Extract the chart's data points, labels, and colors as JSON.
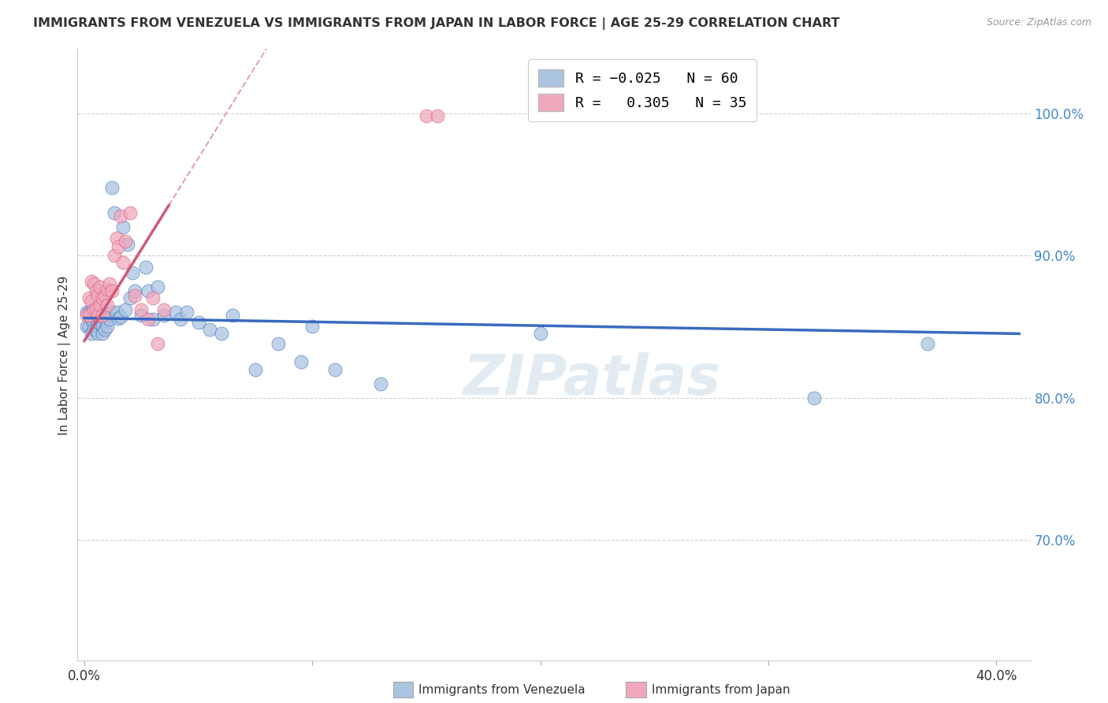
{
  "title": "IMMIGRANTS FROM VENEZUELA VS IMMIGRANTS FROM JAPAN IN LABOR FORCE | AGE 25-29 CORRELATION CHART",
  "source": "Source: ZipAtlas.com",
  "ylabel": "In Labor Force | Age 25-29",
  "xlim": [
    -0.003,
    0.415
  ],
  "ylim": [
    0.615,
    1.045
  ],
  "y_ticks": [
    0.7,
    0.8,
    0.9,
    1.0
  ],
  "y_tick_labels": [
    "70.0%",
    "80.0%",
    "90.0%",
    "100.0%"
  ],
  "x_ticks": [
    0.0,
    0.1,
    0.2,
    0.3,
    0.4
  ],
  "x_tick_labels_show": [
    "0.0%",
    "40.0%"
  ],
  "legend_blue_label": "R = -0.025   N = 60",
  "legend_pink_label": "R =  0.305   N = 35",
  "blue_color": "#aac4e0",
  "pink_color": "#f0a8bc",
  "blue_line_color": "#3a6abf",
  "pink_line_color": "#d05878",
  "pink_dash_color": "#e8a0b0",
  "watermark_text": "ZIPatlas",
  "blue_R": -0.025,
  "pink_R": 0.305,
  "blue_scatter_x": [
    0.001,
    0.001,
    0.002,
    0.002,
    0.003,
    0.003,
    0.003,
    0.004,
    0.004,
    0.004,
    0.005,
    0.005,
    0.005,
    0.006,
    0.006,
    0.006,
    0.007,
    0.007,
    0.008,
    0.008,
    0.008,
    0.009,
    0.009,
    0.01,
    0.01,
    0.011,
    0.012,
    0.012,
    0.013,
    0.014,
    0.015,
    0.016,
    0.017,
    0.018,
    0.019,
    0.02,
    0.021,
    0.022,
    0.025,
    0.027,
    0.028,
    0.03,
    0.032,
    0.035,
    0.04,
    0.042,
    0.045,
    0.05,
    0.055,
    0.06,
    0.065,
    0.075,
    0.085,
    0.095,
    0.1,
    0.11,
    0.13,
    0.2,
    0.32,
    0.37
  ],
  "blue_scatter_y": [
    0.86,
    0.85,
    0.86,
    0.85,
    0.86,
    0.855,
    0.845,
    0.858,
    0.852,
    0.848,
    0.86,
    0.855,
    0.848,
    0.858,
    0.85,
    0.845,
    0.86,
    0.852,
    0.858,
    0.85,
    0.845,
    0.855,
    0.848,
    0.858,
    0.85,
    0.855,
    0.948,
    0.86,
    0.93,
    0.86,
    0.856,
    0.857,
    0.92,
    0.862,
    0.908,
    0.87,
    0.888,
    0.875,
    0.858,
    0.892,
    0.875,
    0.855,
    0.878,
    0.858,
    0.86,
    0.855,
    0.86,
    0.853,
    0.848,
    0.845,
    0.858,
    0.82,
    0.838,
    0.825,
    0.85,
    0.82,
    0.81,
    0.845,
    0.8,
    0.838
  ],
  "pink_scatter_x": [
    0.001,
    0.002,
    0.002,
    0.003,
    0.003,
    0.004,
    0.004,
    0.005,
    0.005,
    0.006,
    0.006,
    0.007,
    0.007,
    0.008,
    0.008,
    0.009,
    0.01,
    0.01,
    0.011,
    0.012,
    0.013,
    0.014,
    0.015,
    0.016,
    0.017,
    0.018,
    0.02,
    0.022,
    0.025,
    0.028,
    0.03,
    0.032,
    0.035,
    0.15,
    0.155
  ],
  "pink_scatter_y": [
    0.858,
    0.87,
    0.858,
    0.882,
    0.868,
    0.88,
    0.862,
    0.875,
    0.862,
    0.872,
    0.858,
    0.878,
    0.865,
    0.87,
    0.858,
    0.872,
    0.876,
    0.865,
    0.88,
    0.875,
    0.9,
    0.912,
    0.906,
    0.928,
    0.895,
    0.91,
    0.93,
    0.872,
    0.862,
    0.855,
    0.87,
    0.838,
    0.862,
    0.998,
    0.998
  ]
}
